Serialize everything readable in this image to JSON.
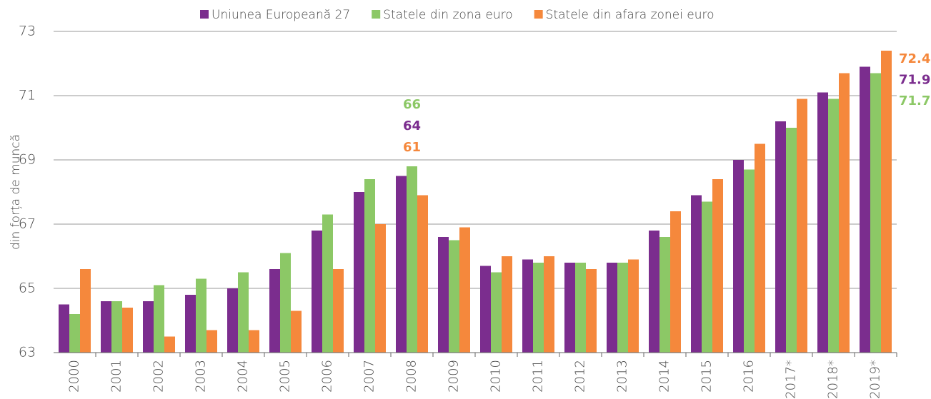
{
  "chart_data": {
    "type": "bar",
    "ylabel": "din forța de muncă",
    "categories": [
      "2000",
      "2001",
      "2002",
      "2003",
      "2004",
      "2005",
      "2006",
      "2007",
      "2008",
      "2009",
      "2010",
      "2011",
      "2012",
      "2013",
      "2014",
      "2015",
      "2016",
      "2017*",
      "2018*",
      "2019*"
    ],
    "series": [
      {
        "name": "Uniunea Europeană 27",
        "color": "#7b2d8e",
        "values": [
          64.5,
          64.6,
          64.6,
          64.8,
          65.0,
          65.6,
          66.8,
          68.0,
          68.5,
          66.6,
          65.7,
          65.9,
          65.8,
          65.8,
          66.8,
          67.9,
          69.0,
          70.2,
          71.1,
          71.9
        ]
      },
      {
        "name": "Statele din zona euro",
        "color": "#8cc866",
        "values": [
          64.2,
          64.6,
          65.1,
          65.3,
          65.5,
          66.1,
          67.3,
          68.4,
          68.8,
          66.5,
          65.5,
          65.8,
          65.8,
          65.8,
          66.6,
          67.7,
          68.7,
          70.0,
          70.9,
          71.7
        ]
      },
      {
        "name": "Statele din afara zonei euro",
        "color": "#f5883c",
        "values": [
          65.6,
          64.4,
          63.5,
          63.7,
          63.7,
          64.3,
          65.6,
          67.0,
          67.9,
          66.9,
          66.0,
          66.0,
          65.6,
          65.9,
          67.4,
          68.4,
          69.5,
          70.9,
          71.7,
          72.4
        ]
      }
    ],
    "annotations": [
      {
        "text": "66",
        "color": "#8cc866"
      },
      {
        "text": "64",
        "color": "#7b2d8e"
      },
      {
        "text": "61",
        "color": "#f5883c"
      }
    ],
    "ylim": [
      63,
      73
    ],
    "yticks": [
      63,
      65,
      67,
      69,
      71,
      73
    ],
    "grid": true,
    "legend": "top"
  }
}
